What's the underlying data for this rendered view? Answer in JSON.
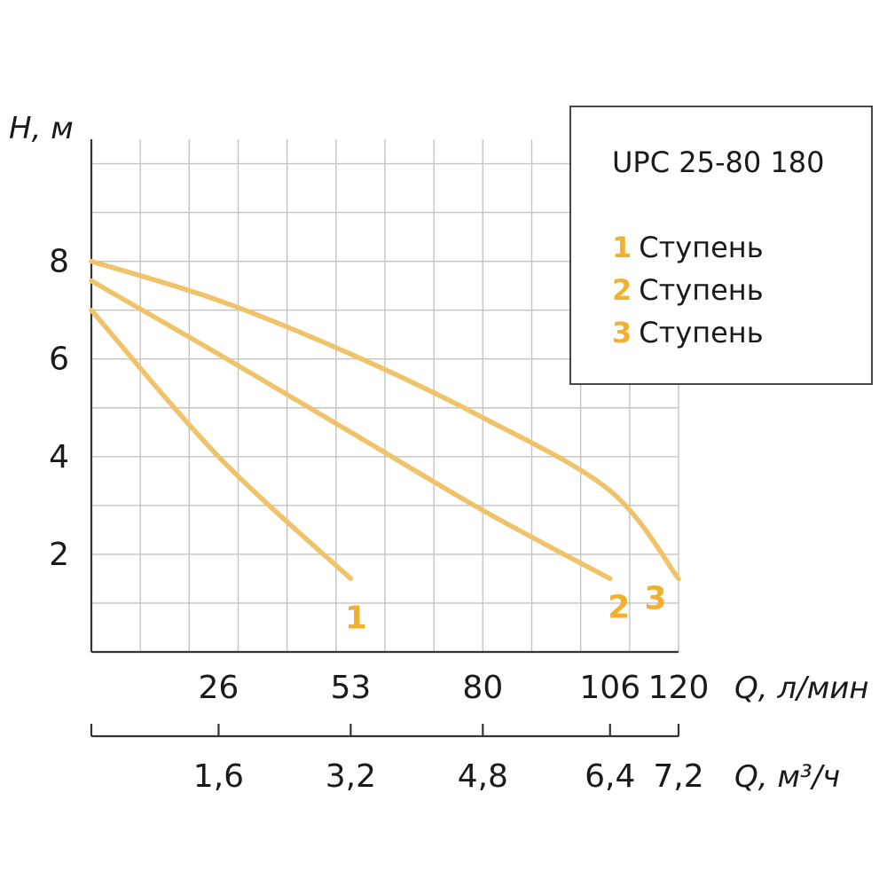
{
  "chart_data": {
    "type": "line",
    "title": "UPC 25-80 180",
    "ylabel": "H, м",
    "xlabel": "Q, л/мин",
    "xlabel_secondary": "Q, м³/ч",
    "ylim": [
      0,
      10.5
    ],
    "xlim": [
      0,
      120
    ],
    "grid": true,
    "legend_position": "top-right",
    "y_ticks": [
      "2",
      "4",
      "6",
      "8"
    ],
    "y_tick_values": [
      2,
      4,
      6,
      8
    ],
    "x_ticks": [
      "26",
      "53",
      "80",
      "106",
      "120"
    ],
    "x_tick_values": [
      26,
      53,
      80,
      106,
      120
    ],
    "x2_ticks": [
      "1,6",
      "3,2",
      "4,8",
      "6,4",
      "7,2"
    ],
    "x2_tick_values": [
      26,
      53,
      80,
      106,
      120
    ],
    "line_color": "#f0c36a",
    "label_color": "#f0b030",
    "series": [
      {
        "name": "Ступень",
        "number": "1",
        "end_label": "1",
        "x": [
          0,
          26,
          53
        ],
        "y": [
          7,
          4,
          1.5
        ]
      },
      {
        "name": "Ступень",
        "number": "2",
        "end_label": "2",
        "x": [
          0,
          26,
          53,
          80,
          106
        ],
        "y": [
          7.6,
          6.1,
          4.5,
          2.9,
          1.5
        ]
      },
      {
        "name": "Ступень",
        "number": "3",
        "end_label": "3",
        "x": [
          0,
          26,
          53,
          80,
          106,
          120
        ],
        "y": [
          8,
          7.2,
          6.1,
          4.8,
          3.3,
          1.5
        ]
      }
    ]
  }
}
